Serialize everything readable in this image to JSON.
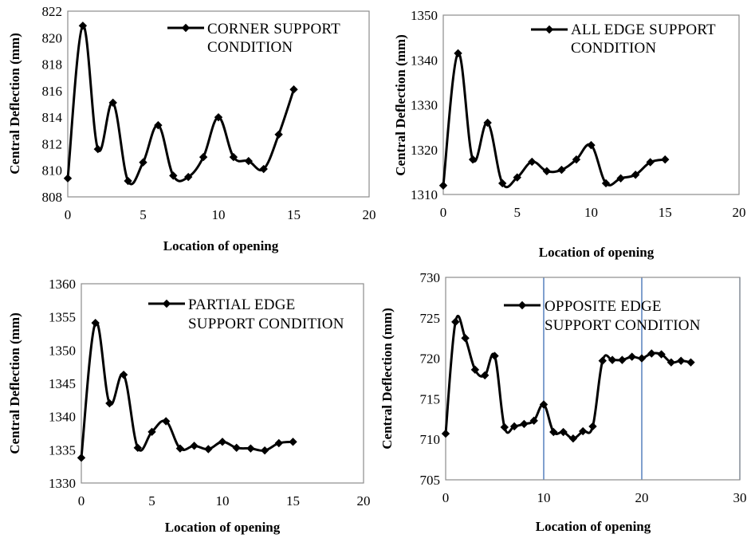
{
  "chart_data": [
    {
      "type": "line",
      "xlabel": "Location of opening",
      "ylabel": "Central Deflection (mm)",
      "xlim": [
        0,
        20
      ],
      "ylim": [
        808,
        822
      ],
      "xticks": [
        0,
        5,
        10,
        15,
        20
      ],
      "yticks": [
        808,
        810,
        812,
        814,
        816,
        818,
        820,
        822
      ],
      "vgrid": [],
      "legend_position": "top-right",
      "series": [
        {
          "name": "CORNER SUPPORT CONDITION",
          "legend_lines": [
            "CORNER SUPPORT",
            "CONDITION"
          ],
          "x": [
            0,
            1,
            2,
            3,
            4,
            5,
            6,
            7,
            8,
            9,
            10,
            11,
            12,
            13,
            14,
            15
          ],
          "y": [
            809.4,
            820.9,
            811.6,
            815.1,
            809.2,
            810.6,
            813.4,
            809.6,
            809.5,
            811.0,
            814.0,
            811.0,
            810.7,
            810.1,
            812.7,
            816.1
          ]
        }
      ]
    },
    {
      "type": "line",
      "xlabel": "Location of opening",
      "ylabel": "Central Deflection (mm)",
      "xlim": [
        0,
        20
      ],
      "ylim": [
        1310,
        1350
      ],
      "xticks": [
        0,
        5,
        10,
        15,
        20
      ],
      "yticks": [
        1310,
        1320,
        1330,
        1340,
        1350
      ],
      "vgrid": [],
      "legend_position": "top-right",
      "series": [
        {
          "name": "ALL EDGE SUPPORT CONDITION",
          "legend_lines": [
            "ALL EDGE SUPPORT",
            "CONDITION"
          ],
          "x": [
            0,
            1,
            2,
            3,
            4,
            5,
            6,
            7,
            8,
            9,
            10,
            11,
            12,
            13,
            14,
            15
          ],
          "y": [
            1312.0,
            1341.5,
            1317.8,
            1326.0,
            1312.5,
            1313.8,
            1317.3,
            1315.2,
            1315.5,
            1317.8,
            1321.0,
            1312.5,
            1313.6,
            1314.4,
            1317.2,
            1317.8
          ]
        }
      ]
    },
    {
      "type": "line",
      "xlabel": "Location of opening",
      "ylabel": "Central Deflection (mm)",
      "xlim": [
        0,
        20
      ],
      "ylim": [
        1330,
        1360
      ],
      "xticks": [
        0,
        5,
        10,
        15,
        20
      ],
      "yticks": [
        1330,
        1335,
        1340,
        1345,
        1350,
        1355,
        1360
      ],
      "vgrid": [],
      "legend_position": "top-right",
      "series": [
        {
          "name": "PARTIAL EDGE SUPPORT CONDITION",
          "legend_lines": [
            "PARTIAL EDGE",
            "SUPPORT CONDITION"
          ],
          "x": [
            0,
            1,
            2,
            3,
            4,
            5,
            6,
            7,
            8,
            9,
            10,
            11,
            12,
            13,
            14,
            15
          ],
          "y": [
            1333.8,
            1354.1,
            1342.0,
            1346.3,
            1335.3,
            1337.7,
            1339.3,
            1335.2,
            1335.6,
            1335.1,
            1336.2,
            1335.3,
            1335.2,
            1334.9,
            1336.0,
            1336.2
          ]
        }
      ]
    },
    {
      "type": "line",
      "xlabel": "Location of opening",
      "ylabel": "Central Deflection (mm)",
      "xlim": [
        0,
        30
      ],
      "ylim": [
        705,
        730
      ],
      "xticks": [
        0,
        10,
        20,
        30
      ],
      "yticks": [
        705,
        710,
        715,
        720,
        725,
        730
      ],
      "vgrid": [
        10,
        20,
        30
      ],
      "legend_position": "top-right",
      "series": [
        {
          "name": "OPPOSITE EDGE SUPPORT CONDITION",
          "legend_lines": [
            "OPPOSITE EDGE",
            "SUPPORT CONDITION"
          ],
          "x": [
            0,
            1,
            2,
            3,
            4,
            5,
            6,
            7,
            8,
            9,
            10,
            11,
            12,
            13,
            14,
            15,
            16,
            17,
            18,
            19,
            20,
            21,
            22,
            23,
            24,
            25
          ],
          "y": [
            710.7,
            724.5,
            722.5,
            718.6,
            717.9,
            720.3,
            711.5,
            711.6,
            711.9,
            712.3,
            714.3,
            710.9,
            710.9,
            710.1,
            711.0,
            711.6,
            719.7,
            719.8,
            719.8,
            720.2,
            720.0,
            720.6,
            720.5,
            719.5,
            719.7,
            719.5
          ]
        }
      ]
    }
  ]
}
